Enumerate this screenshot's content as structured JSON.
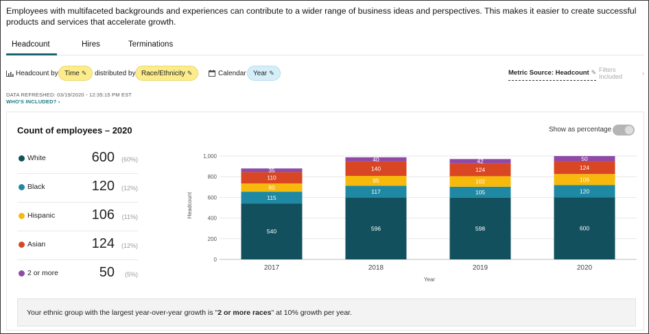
{
  "intro": "Employees with multifaceted backgrounds and experiences can contribute to a wider range of business ideas and perspectives.  This makes it easier to create successful products and services that accelerate growth.",
  "tabs": [
    {
      "label": "Headcount",
      "active": true
    },
    {
      "label": "Hires",
      "active": false
    },
    {
      "label": "Terminations",
      "active": false
    }
  ],
  "filters": {
    "headcount_by_label": "Headcount by",
    "time_pill": "Time",
    "distributed_by_label": "distributed by",
    "race_pill": "Race/Ethnicity",
    "calendar_label": "Calendar",
    "year_pill": "Year",
    "metric_source": "Metric Source: Headcount",
    "filters_included": "Filters Included"
  },
  "refresh": {
    "data_refreshed": "DATA REFRESHED: 03/19/2020 - 12:35:15 PM EST",
    "whos_included": "WHO'S INCLUDED?"
  },
  "card": {
    "title": "Count of employees – 2020",
    "toggle_label": "Show as percentage",
    "toggle_on": false
  },
  "legend": [
    {
      "name": "White",
      "value": "600",
      "pct": "(60%)",
      "color": "#12505e"
    },
    {
      "name": "Black",
      "value": "120",
      "pct": "(12%)",
      "color": "#1f88a3"
    },
    {
      "name": "Hispanic",
      "value": "106",
      "pct": "(11%)",
      "color": "#f7b90b"
    },
    {
      "name": "Asian",
      "value": "124",
      "pct": "(12%)",
      "color": "#d84624"
    },
    {
      "name": "2 or more",
      "value": "50",
      "pct": "(5%)",
      "color": "#8f4aa6"
    }
  ],
  "chart_data": {
    "type": "bar",
    "stacked": true,
    "categories": [
      "2017",
      "2018",
      "2019",
      "2020"
    ],
    "series": [
      {
        "name": "White",
        "values": [
          540,
          596,
          598,
          600
        ],
        "color": "#12505e"
      },
      {
        "name": "Black",
        "values": [
          115,
          117,
          105,
          120
        ],
        "color": "#1f88a3"
      },
      {
        "name": "Hispanic",
        "values": [
          80,
          95,
          102,
          106
        ],
        "color": "#f7b90b"
      },
      {
        "name": "Asian",
        "values": [
          110,
          140,
          124,
          124
        ],
        "color": "#d84624"
      },
      {
        "name": "2 or more",
        "values": [
          35,
          40,
          42,
          50
        ],
        "color": "#8f4aa6"
      }
    ],
    "xlabel": "Year",
    "ylabel": "Headcount",
    "ylim": [
      0,
      1000
    ],
    "yticks": [
      0,
      200,
      400,
      600,
      800,
      1000
    ],
    "ytick_labels": [
      "0",
      "200",
      "400",
      "600",
      "800",
      "1,000"
    ],
    "grid": true
  },
  "insight": {
    "prefix": "Your ethnic group with the largest year-over-year growth is \"",
    "highlight": "2 or more races",
    "suffix": "\" at 10% growth per year."
  }
}
